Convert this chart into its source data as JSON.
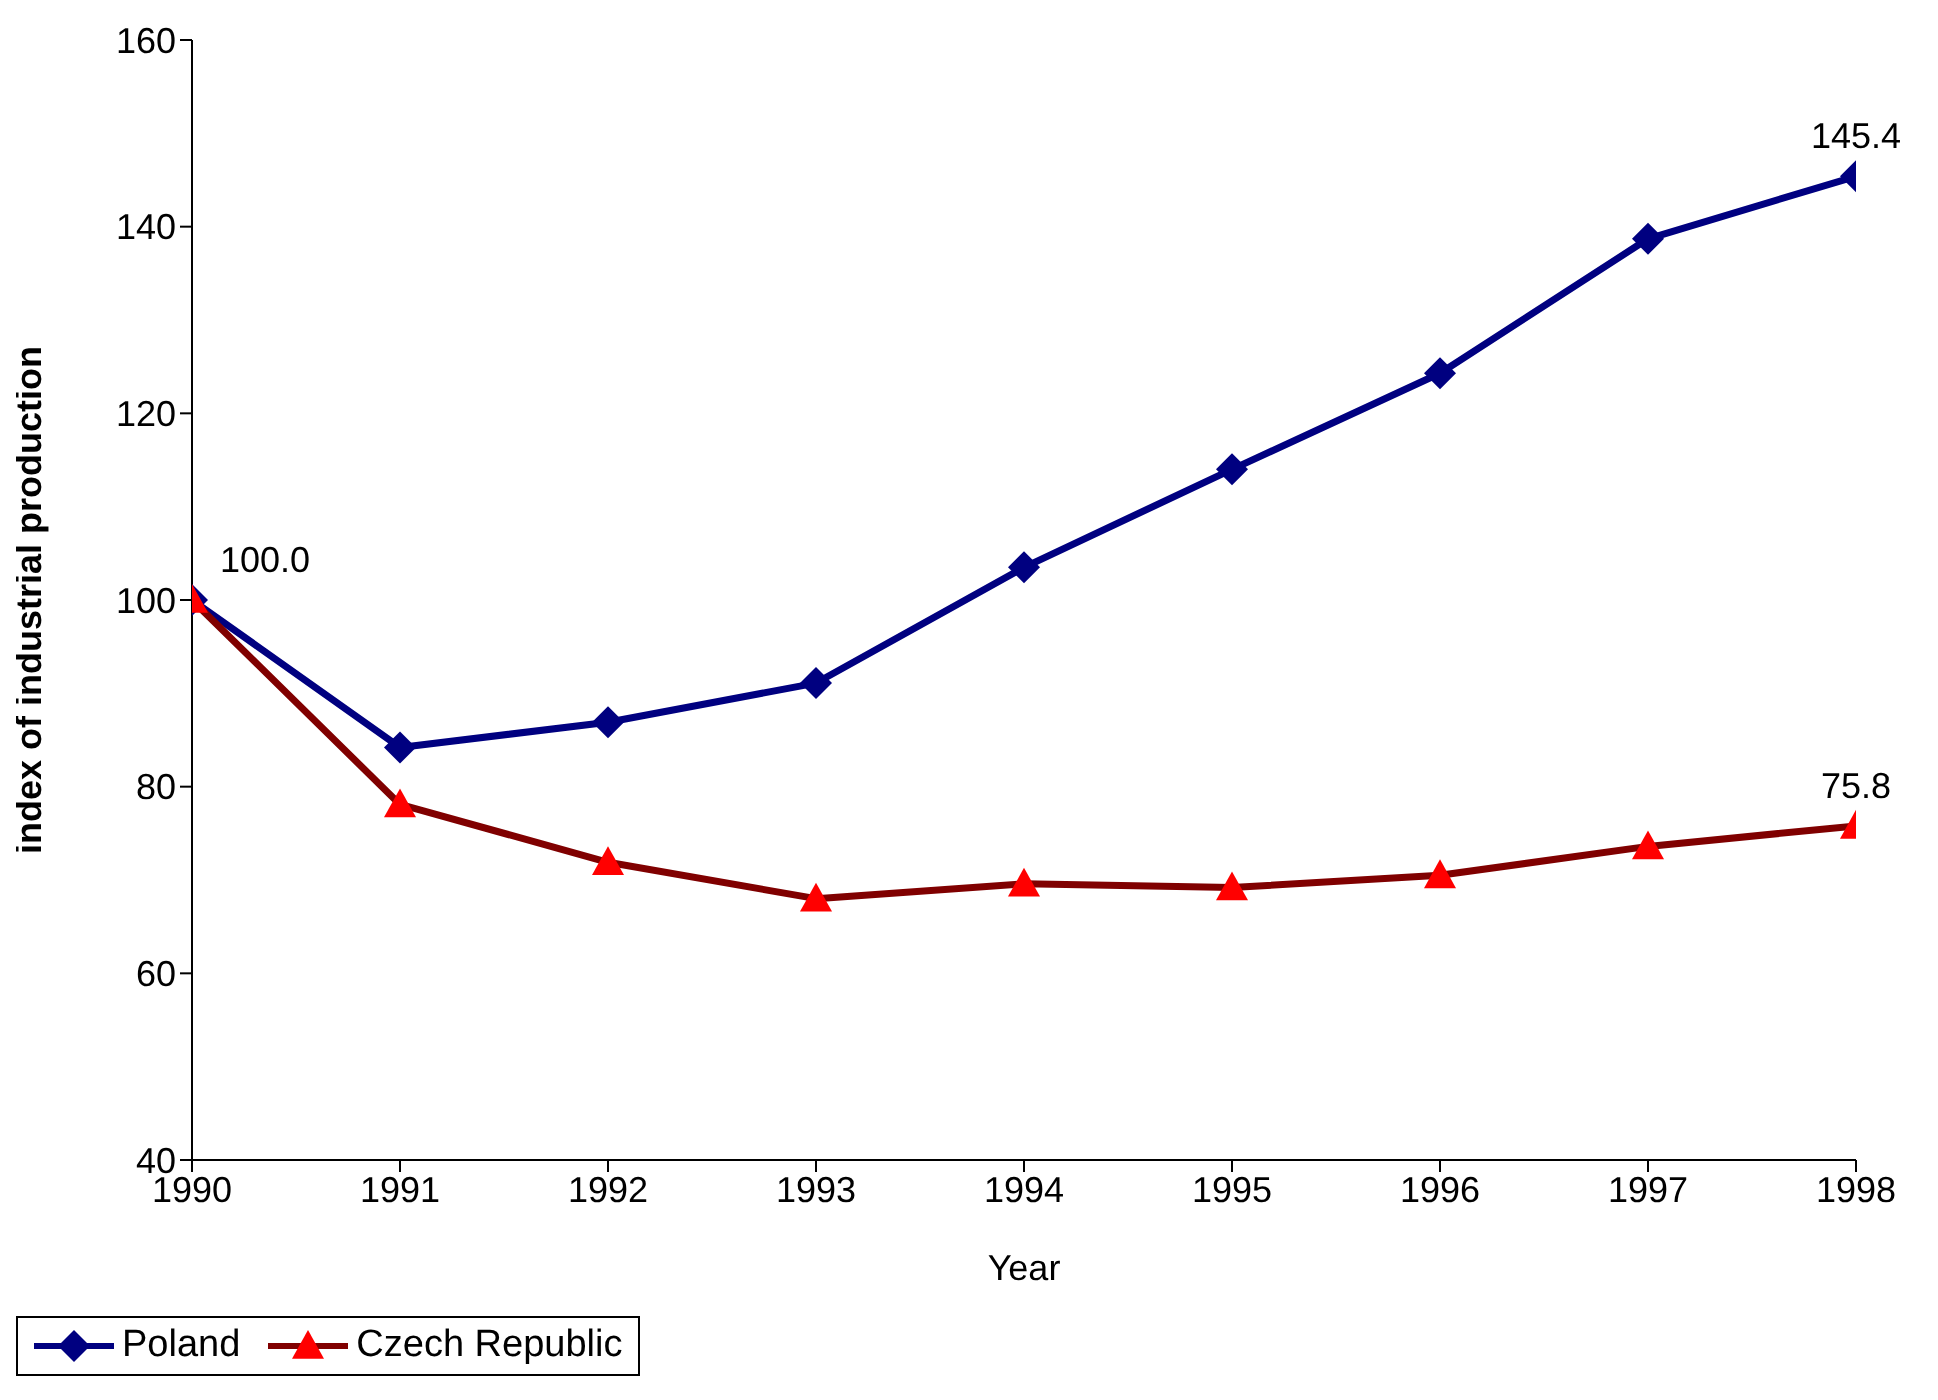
{
  "chart_data": {
    "type": "line",
    "xlabel": "Year",
    "ylabel": "index of industrial production",
    "x": [
      1990,
      1991,
      1992,
      1993,
      1994,
      1995,
      1996,
      1997,
      1998
    ],
    "xlim": [
      1990,
      1998
    ],
    "xticks": [
      1990,
      1991,
      1992,
      1993,
      1994,
      1995,
      1996,
      1997,
      1998
    ],
    "ylim": [
      40,
      160
    ],
    "yticks": [
      40,
      60,
      80,
      100,
      120,
      140,
      160
    ],
    "grid": false,
    "legend": "bottom",
    "line_style": "solid",
    "series": [
      {
        "name": "Poland",
        "color": "#000080",
        "marker": "diamond",
        "values": [
          100,
          84.2,
          86.9,
          91.1,
          103.5,
          114,
          124.3,
          138.7,
          145.4
        ],
        "value_labels": [
          "100.0",
          null,
          null,
          null,
          null,
          null,
          null,
          null,
          "145.4"
        ]
      },
      {
        "name": "Czech Republic",
        "color": "#800000",
        "colors": [
          "#ff0000",
          "#ff0000",
          "#ff0000",
          "#ff0000",
          "#ff0000",
          "#ff0000",
          "#ff0000",
          "#ff0000",
          "#ff0000"
        ],
        "marker": "triangle",
        "values": [
          100,
          78.1,
          71.9,
          68,
          69.6,
          69.2,
          70.5,
          73.6,
          75.8
        ],
        "value_labels": [
          null,
          null,
          null,
          null,
          null,
          null,
          null,
          null,
          "75.8"
        ]
      }
    ]
  }
}
